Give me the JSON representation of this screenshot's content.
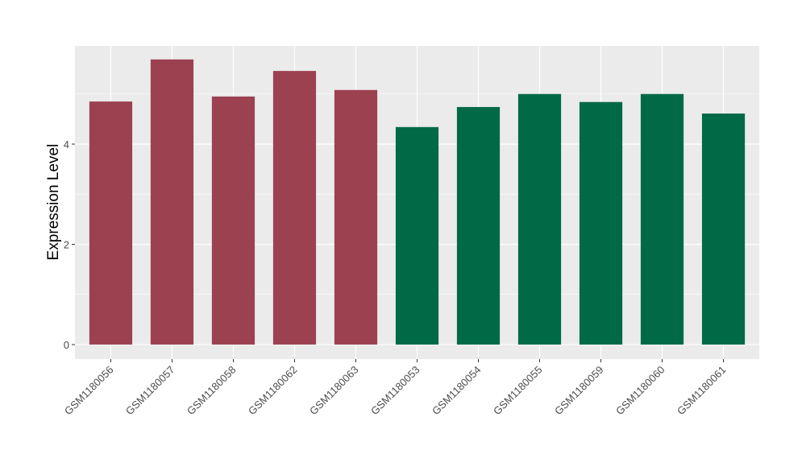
{
  "chart_data": {
    "type": "bar",
    "title": "",
    "xlabel": "",
    "ylabel": "Expression Level",
    "categories": [
      "GSM1180056",
      "GSM1180057",
      "GSM1180058",
      "GSM1180062",
      "GSM1180063",
      "GSM1180053",
      "GSM1180054",
      "GSM1180055",
      "GSM1180059",
      "GSM1180060",
      "GSM1180061"
    ],
    "values": [
      4.85,
      5.69,
      4.95,
      5.46,
      5.08,
      4.34,
      4.74,
      5.0,
      4.84,
      5.0,
      4.61
    ],
    "group_colors": [
      "#9B4150",
      "#9B4150",
      "#9B4150",
      "#9B4150",
      "#9B4150",
      "#006946",
      "#006946",
      "#006946",
      "#006946",
      "#006946",
      "#006946"
    ],
    "yticks": [
      0,
      2,
      4
    ],
    "ylim": [
      -0.29,
      5.96
    ],
    "grid": true,
    "panel_background": "#EBEBEB",
    "legend": "none"
  }
}
